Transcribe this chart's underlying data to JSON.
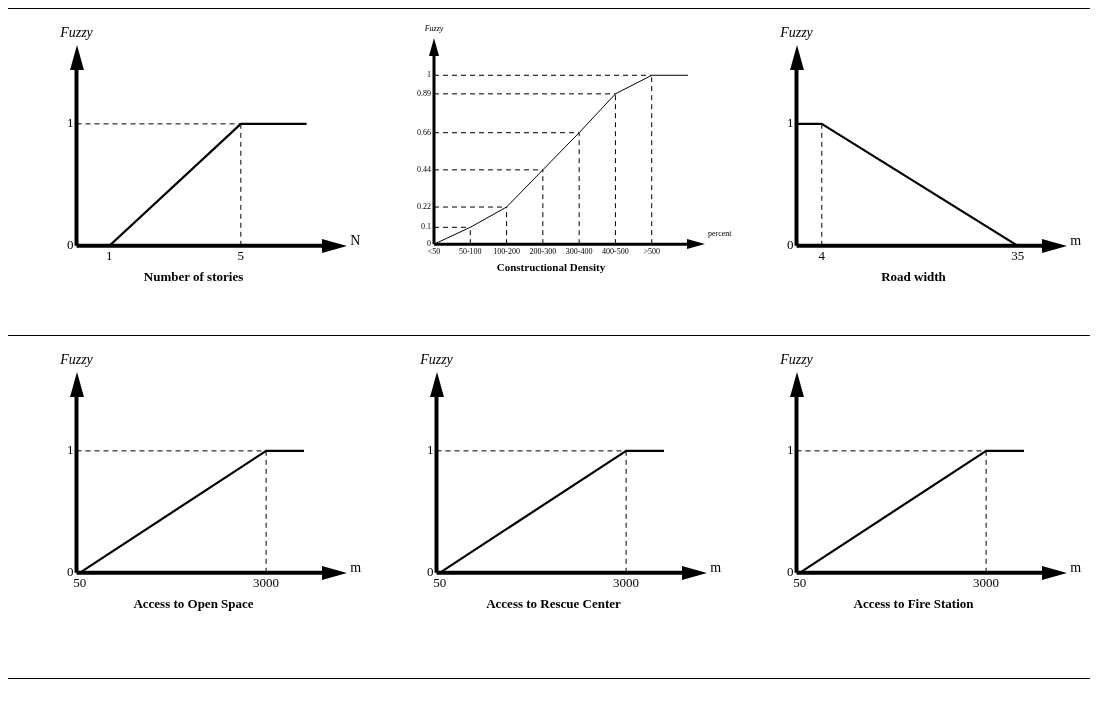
{
  "chart_data": [
    {
      "type": "line",
      "title": "Number of stories",
      "xlabel": "N",
      "ylabel": "Fuzzy",
      "x": [
        1,
        5,
        7
      ],
      "values": [
        0,
        1,
        1
      ],
      "color": "#000000",
      "xlim": [
        0,
        7.5
      ],
      "xticks": [
        1,
        5
      ],
      "ylim": [
        0,
        1.45
      ],
      "yticks": [
        0,
        1
      ],
      "ref_lines": [
        {
          "axis": "x",
          "value": 5,
          "line_style": "dashed"
        },
        {
          "axis": "y",
          "value": 1,
          "line_style": "dashed"
        }
      ]
    },
    {
      "type": "line",
      "title": "Constructional Density",
      "xlabel": "percent",
      "ylabel": "Fuzzy",
      "categories": [
        "<50",
        "50-100",
        "100-200",
        "200-300",
        "300-400",
        "400-500",
        ">500",
        null
      ],
      "values": [
        0,
        0.1,
        0.22,
        0.44,
        0.66,
        0.89,
        1,
        1
      ],
      "color": "#000000",
      "ylim": [
        0,
        1.12
      ],
      "yticks": [
        0,
        0.1,
        0.22,
        0.44,
        0.66,
        0.89,
        1
      ],
      "ref_lines": [
        {
          "axis": "x",
          "value": "50-100",
          "line_style": "dashed"
        },
        {
          "axis": "x",
          "value": "100-200",
          "line_style": "dashed"
        },
        {
          "axis": "x",
          "value": "200-300",
          "line_style": "dashed"
        },
        {
          "axis": "x",
          "value": "300-400",
          "line_style": "dashed"
        },
        {
          "axis": "x",
          "value": "400-500",
          "line_style": "dashed"
        },
        {
          "axis": "x",
          "value": ">500",
          "line_style": "dashed"
        },
        {
          "axis": "y",
          "value": 0.1,
          "line_style": "dashed"
        },
        {
          "axis": "y",
          "value": 0.22,
          "line_style": "dashed"
        },
        {
          "axis": "y",
          "value": 0.44,
          "line_style": "dashed"
        },
        {
          "axis": "y",
          "value": 0.66,
          "line_style": "dashed"
        },
        {
          "axis": "y",
          "value": 0.89,
          "line_style": "dashed"
        },
        {
          "axis": "y",
          "value": 1,
          "line_style": "dashed"
        }
      ]
    },
    {
      "type": "line",
      "title": "Road width",
      "xlabel": "m",
      "ylabel": "Fuzzy",
      "x": [
        0,
        4,
        35
      ],
      "values": [
        1,
        1,
        0
      ],
      "color": "#000000",
      "xlim": [
        0,
        39
      ],
      "xticks": [
        4,
        35
      ],
      "ylim": [
        0,
        1.45
      ],
      "yticks": [
        0,
        1
      ],
      "ref_lines": [
        {
          "axis": "x",
          "value": 4,
          "line_style": "dashed"
        }
      ]
    },
    {
      "type": "line",
      "title": "Access to Open Space",
      "xlabel": "m",
      "ylabel": "Fuzzy",
      "x": [
        50,
        3000,
        3600
      ],
      "values": [
        0,
        1,
        1
      ],
      "color": "#000000",
      "xlim": [
        0,
        3900
      ],
      "xticks": [
        50,
        3000
      ],
      "ylim": [
        0,
        1.45
      ],
      "yticks": [
        0,
        1
      ],
      "ref_lines": [
        {
          "axis": "x",
          "value": 3000,
          "line_style": "dashed"
        },
        {
          "axis": "y",
          "value": 1,
          "line_style": "dashed"
        }
      ]
    },
    {
      "type": "line",
      "title": "Access to Rescue Center",
      "xlabel": "m",
      "ylabel": "Fuzzy",
      "x": [
        50,
        3000,
        3600
      ],
      "values": [
        0,
        1,
        1
      ],
      "color": "#000000",
      "xlim": [
        0,
        3900
      ],
      "xticks": [
        50,
        3000
      ],
      "ylim": [
        0,
        1.45
      ],
      "yticks": [
        0,
        1
      ],
      "ref_lines": [
        {
          "axis": "x",
          "value": 3000,
          "line_style": "dashed"
        },
        {
          "axis": "y",
          "value": 1,
          "line_style": "dashed"
        }
      ]
    },
    {
      "type": "line",
      "title": "Access to Fire Station",
      "xlabel": "m",
      "ylabel": "Fuzzy",
      "x": [
        50,
        3000,
        3600
      ],
      "values": [
        0,
        1,
        1
      ],
      "color": "#000000",
      "xlim": [
        0,
        3900
      ],
      "xticks": [
        50,
        3000
      ],
      "ylim": [
        0,
        1.45
      ],
      "yticks": [
        0,
        1
      ],
      "ref_lines": [
        {
          "axis": "x",
          "value": 3000,
          "line_style": "dashed"
        },
        {
          "axis": "y",
          "value": 1,
          "line_style": "dashed"
        }
      ]
    }
  ]
}
